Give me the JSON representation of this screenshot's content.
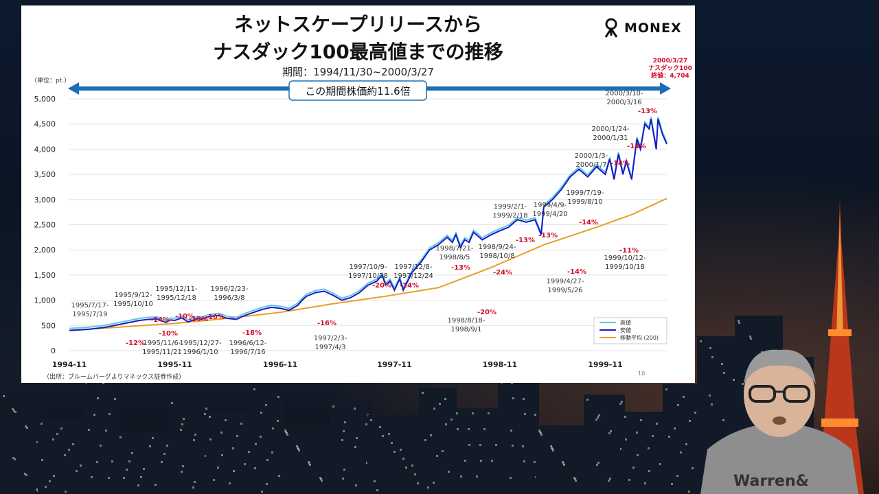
{
  "slide": {
    "title_line1": "ネットスケープリリースから",
    "title_line2": "ナスダック100最高値までの推移",
    "period": "期間：1994/11/30~2000/3/27",
    "unit": "（単位：pt.）",
    "brand": "MONEX",
    "source": "（出所：ブルームバーグよりマネックス証券作成）",
    "page_number": "10",
    "peak_note_lines": [
      "2000/3/27",
      "ナスダック100",
      "終値：4,704"
    ]
  },
  "colors": {
    "high": "#5ec8e0",
    "low": "#1818c8",
    "ma": "#e8a020",
    "arrow": "#1a6eb4",
    "drawdown": "#d0102a",
    "peak_dot": "#3cb878",
    "trough_dot": "#d0102a"
  },
  "chart_data": {
    "type": "line",
    "xlabels": [
      "1994-11",
      "1995-11",
      "1996-11",
      "1997-11",
      "1998-11",
      "1999-11"
    ],
    "ylim": [
      0,
      5000
    ],
    "yticks": [
      "0",
      "500",
      "1,000",
      "1,500",
      "2,000",
      "2,500",
      "3,000",
      "3,500",
      "4,000",
      "4,500",
      "5,000"
    ],
    "ytick_values": [
      0,
      500,
      1000,
      1500,
      2000,
      2500,
      3000,
      3500,
      4000,
      4500,
      5000
    ],
    "range_label": "この期間株価約11.6倍",
    "legend": [
      "高値",
      "安値",
      "移動平均 (200)"
    ],
    "series": [
      {
        "name": "安値",
        "x": [
          0,
          2,
          4,
          6,
          8,
          9,
          10,
          11,
          11.5,
          12,
          12.8,
          13.5,
          14,
          14.6,
          15,
          16,
          17,
          18,
          19,
          20,
          21,
          22,
          23,
          24,
          25,
          26,
          26.5,
          27,
          28,
          29,
          30,
          31,
          32,
          33,
          34,
          35,
          35.6,
          36,
          36.5,
          37,
          37.6,
          38,
          39,
          40,
          41,
          42,
          43,
          43.6,
          44,
          44.5,
          45,
          45.5,
          46,
          47,
          48,
          49,
          50,
          51,
          52,
          53,
          53.7,
          54,
          55,
          56,
          57,
          58,
          59,
          60,
          61,
          61.5,
          62,
          62.5,
          63,
          63.4,
          64,
          64.6,
          65,
          65.5,
          66,
          66.2,
          66.8,
          67,
          67.5,
          68
        ],
        "y": [
          400,
          420,
          460,
          530,
          600,
          620,
          630,
          560,
          610,
          600,
          650,
          570,
          600,
          640,
          620,
          680,
          700,
          640,
          620,
          700,
          760,
          820,
          860,
          840,
          800,
          900,
          1000,
          1080,
          1150,
          1180,
          1100,
          1000,
          1050,
          1150,
          1300,
          1380,
          1500,
          1300,
          1380,
          1200,
          1420,
          1200,
          1550,
          1750,
          2000,
          2100,
          2250,
          2150,
          2300,
          2050,
          2200,
          2150,
          2350,
          2200,
          2300,
          2380,
          2450,
          2600,
          2550,
          2600,
          2300,
          2850,
          3000,
          3200,
          3450,
          3600,
          3450,
          3650,
          3500,
          3800,
          3400,
          3900,
          3500,
          3750,
          3400,
          4200,
          4000,
          4500,
          4400,
          4600,
          4000,
          4600,
          4300,
          4100
        ]
      },
      {
        "name": "移動平均 (200)",
        "x": [
          0,
          6,
          12,
          18,
          24,
          30,
          36,
          42,
          48,
          54,
          60,
          64,
          68
        ],
        "y": [
          400,
          470,
          540,
          640,
          760,
          930,
          1080,
          1250,
          1650,
          2100,
          2450,
          2700,
          3020
        ]
      }
    ],
    "annotations": [
      {
        "dates": [
          "1995/7/17-",
          "1995/7/19"
        ],
        "pct": "-12%"
      },
      {
        "dates": [
          "1995/9/12-",
          "1995/10/10"
        ],
        "pct": "-14%"
      },
      {
        "dates": [
          "1995/11/6-",
          "1995/11/21"
        ],
        "pct": "-10%"
      },
      {
        "dates": [
          "1995/12/11-",
          "1995/12/18"
        ],
        "pct": "-10%"
      },
      {
        "dates": [
          "1995/12/27-",
          "1996/1/10"
        ],
        "pct": "-10%"
      },
      {
        "dates": [
          "1996/2/23-",
          "1996/3/8"
        ],
        "pct": "-10%"
      },
      {
        "dates": [
          "1996/6/12-",
          "1996/7/16"
        ],
        "pct": "-18%"
      },
      {
        "dates": [
          "1997/2/3-",
          "1997/4/3"
        ],
        "pct": "-16%"
      },
      {
        "dates": [
          "1997/10/9-",
          "1997/10/28"
        ],
        "pct": "-20%"
      },
      {
        "dates": [
          "1997/12/8-",
          "1997/12/24"
        ],
        "pct": "-14%"
      },
      {
        "dates": [
          "1998/7/21-",
          "1998/8/5"
        ],
        "pct": "-13%"
      },
      {
        "dates": [
          "1998/8/18-",
          "1998/9/1"
        ],
        "pct": "-20%"
      },
      {
        "dates": [
          "1998/9/24-",
          "1998/10/8"
        ],
        "pct": "-24%"
      },
      {
        "dates": [
          "1999/2/1-",
          "1999/2/18"
        ],
        "pct": "-13%"
      },
      {
        "dates": [
          "1999/4/9-",
          "1999/4/20"
        ],
        "pct": "-13%"
      },
      {
        "dates": [
          "1999/4/27-",
          "1999/5/26"
        ],
        "pct": "-14%"
      },
      {
        "dates": [
          "1999/7/19-",
          "1999/8/10"
        ],
        "pct": "-14%"
      },
      {
        "dates": [
          "1999/10/12-",
          "1999/10/18"
        ],
        "pct": "-11%"
      },
      {
        "dates": [
          "2000/1/3-",
          "2000/1/7"
        ],
        "pct": "-14%"
      },
      {
        "dates": [
          "2000/1/24-",
          "2000/1/31"
        ],
        "pct": "-14%"
      },
      {
        "dates": [
          "2000/3/10-",
          "2000/3/16"
        ],
        "pct": "-13%"
      }
    ]
  },
  "presenter_shirt_text": [
    "Warren&"
  ]
}
